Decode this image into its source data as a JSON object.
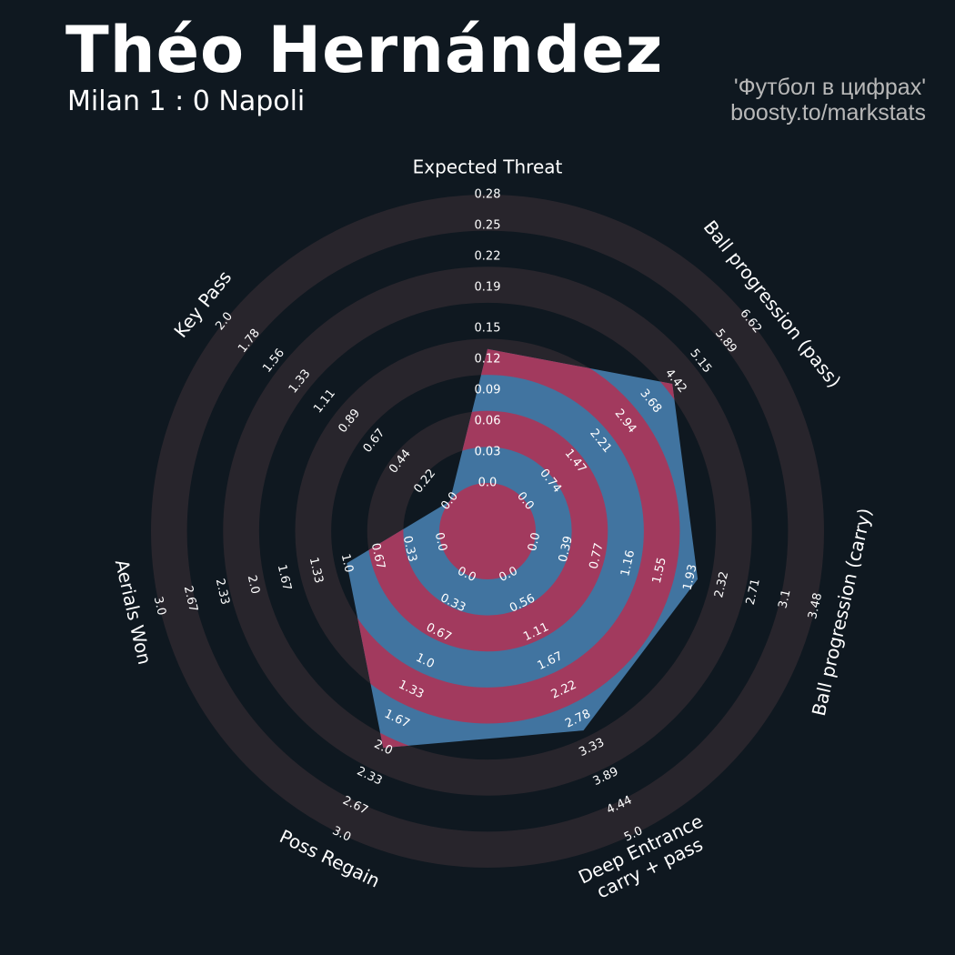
{
  "chart_data": {
    "type": "radar",
    "title": "Théo Hernández",
    "subtitle": "Milan 1 : 0 Napoli",
    "annotations": [
      "'Футбол в цифрах'",
      "boosty.to/markstats"
    ],
    "color": "#4174a0",
    "highlight_color": "#a23a5e",
    "ring_color": "#28252c",
    "axes": [
      {
        "name": "Expected Threat",
        "lim": [
          0,
          0.28
        ],
        "ticks": [
          {
            "value": 0,
            "label": "0.0"
          },
          0.03,
          0.06,
          0.09,
          0.12,
          0.15,
          0.19,
          0.22,
          0.25,
          0.28
        ]
      },
      {
        "name": "Ball progression (pass)",
        "lim": [
          0,
          6.62
        ],
        "ticks": [
          {
            "value": 0,
            "label": "0.0"
          },
          0.74,
          1.47,
          2.21,
          2.94,
          3.68,
          4.42,
          5.15,
          5.89,
          6.62
        ]
      },
      {
        "name": "Ball progression (carry)",
        "lim": [
          0,
          3.48
        ],
        "ticks": [
          {
            "value": 0,
            "label": "0.0"
          },
          0.39,
          0.77,
          1.16,
          1.55,
          1.93,
          2.32,
          2.71,
          {
            "value": 3.1,
            "label": "3.1"
          },
          3.48
        ]
      },
      {
        "name": "Deep Entrance\ncarry + pass",
        "lim": [
          0,
          5
        ],
        "ticks": [
          {
            "value": 0,
            "label": "0.0"
          },
          0.56,
          1.11,
          1.67,
          2.22,
          2.78,
          3.33,
          3.89,
          4.44,
          {
            "value": 5,
            "label": "5.0"
          }
        ]
      },
      {
        "name": "Poss Regain",
        "lim": [
          0,
          3
        ],
        "ticks": [
          {
            "value": 0,
            "label": "0.0"
          },
          0.33,
          0.67,
          {
            "value": 1,
            "label": "1.0"
          },
          1.33,
          1.67,
          {
            "value": 2,
            "label": "2.0"
          },
          2.33,
          2.67,
          {
            "value": 3,
            "label": "3.0"
          }
        ]
      },
      {
        "name": "Aerials Won",
        "lim": [
          0,
          3
        ],
        "ticks": [
          {
            "value": 0,
            "label": "0.0"
          },
          0.33,
          0.67,
          {
            "value": 1,
            "label": "1.0"
          },
          1.33,
          1.67,
          {
            "value": 2,
            "label": "2.0"
          },
          2.33,
          2.67,
          {
            "value": 3,
            "label": "3.0"
          }
        ]
      },
      {
        "name": "Key Pass",
        "lim": [
          0,
          2
        ],
        "ticks": [
          {
            "value": 0,
            "label": "0.0"
          },
          0.22,
          0.44,
          0.67,
          0.89,
          1.11,
          1.33,
          1.56,
          1.78,
          {
            "value": 2,
            "label": "2.0"
          }
        ]
      }
    ],
    "values": [
      0.13,
      4.32,
      2.02,
      3.0,
      2.0,
      1.0,
      0
    ]
  }
}
